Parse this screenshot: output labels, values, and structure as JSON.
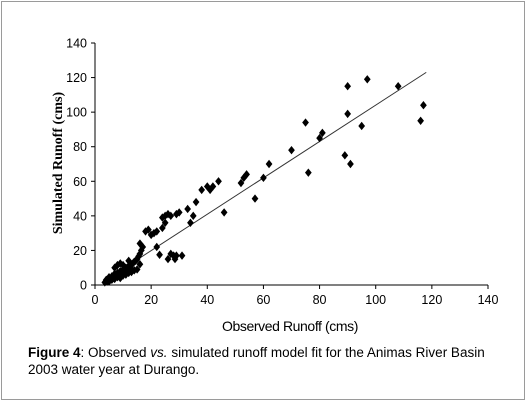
{
  "chart_data": {
    "type": "scatter",
    "xlabel": "Observed Runoff (cms)",
    "ylabel": "Simulated Runoff (cms)",
    "xlim": [
      0,
      140
    ],
    "ylim": [
      0,
      140
    ],
    "x_ticks": [
      "0",
      "20",
      "40",
      "60",
      "80",
      "100",
      "120",
      "140"
    ],
    "y_ticks": [
      "0",
      "20",
      "40",
      "60",
      "80",
      "100",
      "120",
      "140"
    ],
    "grid": false,
    "legend": "none",
    "marker": "diamond",
    "marker_color": "#000000",
    "trendline": {
      "x": [
        3,
        118
      ],
      "y": [
        2,
        123
      ]
    },
    "series": [
      {
        "points": [
          [
            3.5,
            1.5
          ],
          [
            4,
            3
          ],
          [
            4.5,
            2
          ],
          [
            5,
            4.5
          ],
          [
            5.5,
            3.5
          ],
          [
            6,
            5
          ],
          [
            6.5,
            4
          ],
          [
            7,
            6.5
          ],
          [
            7.5,
            5.5
          ],
          [
            8,
            7
          ],
          [
            8.5,
            6
          ],
          [
            9,
            8
          ],
          [
            9.5,
            7
          ],
          [
            10,
            9
          ],
          [
            10.5,
            8.5
          ],
          [
            11,
            10
          ],
          [
            11.5,
            9.5
          ],
          [
            12,
            11
          ],
          [
            12.5,
            10
          ],
          [
            13,
            12
          ],
          [
            13.5,
            12.5
          ],
          [
            14,
            13.5
          ],
          [
            14.5,
            14
          ],
          [
            15,
            15
          ],
          [
            7,
            10
          ],
          [
            8,
            11.5
          ],
          [
            9,
            12.5
          ],
          [
            10,
            11.5
          ],
          [
            12,
            14
          ],
          [
            15.5,
            16.5
          ],
          [
            16,
            18
          ],
          [
            16.5,
            20
          ],
          [
            17,
            22
          ],
          [
            4,
            2.5
          ],
          [
            5,
            2
          ],
          [
            6,
            3
          ],
          [
            7,
            3.5
          ],
          [
            8,
            4.5
          ],
          [
            9,
            4
          ],
          [
            10,
            5.5
          ],
          [
            11,
            6
          ],
          [
            12,
            7
          ],
          [
            13,
            7.5
          ],
          [
            14,
            8.5
          ],
          [
            15,
            9
          ],
          [
            16,
            12
          ],
          [
            16,
            24
          ],
          [
            18,
            31
          ],
          [
            19,
            32
          ],
          [
            20,
            29
          ],
          [
            21,
            30
          ],
          [
            22,
            22
          ],
          [
            23,
            17.5
          ],
          [
            22,
            31
          ],
          [
            24,
            33
          ],
          [
            25,
            36
          ],
          [
            24,
            39
          ],
          [
            25,
            40
          ],
          [
            26,
            41
          ],
          [
            27,
            40
          ],
          [
            26,
            15
          ],
          [
            27,
            18
          ],
          [
            28,
            17
          ],
          [
            29,
            17
          ],
          [
            28.5,
            15
          ],
          [
            30,
            42
          ],
          [
            31,
            17
          ],
          [
            29,
            41
          ],
          [
            33,
            44
          ],
          [
            34,
            36
          ],
          [
            35,
            40
          ],
          [
            36,
            48
          ],
          [
            38,
            55
          ],
          [
            40,
            57
          ],
          [
            41,
            55
          ],
          [
            42,
            57
          ],
          [
            44,
            60
          ],
          [
            46,
            42
          ],
          [
            52,
            59
          ],
          [
            53,
            62
          ],
          [
            54,
            64
          ],
          [
            57,
            50
          ],
          [
            60,
            62
          ],
          [
            62,
            70
          ],
          [
            70,
            78
          ],
          [
            75,
            94
          ],
          [
            76,
            65
          ],
          [
            80,
            85
          ],
          [
            81,
            88
          ],
          [
            89,
            75
          ],
          [
            90,
            115
          ],
          [
            90,
            99
          ],
          [
            91,
            70
          ],
          [
            95,
            92
          ],
          [
            97,
            119
          ],
          [
            108,
            115
          ],
          [
            116,
            95
          ],
          [
            117,
            104
          ]
        ]
      }
    ]
  },
  "caption": {
    "label": "Figure 4",
    "text_before": ": Observed ",
    "italic": "vs.",
    "text_after": " simulated runoff model fit for the Animas River Basin 2003 water year at Durango."
  }
}
